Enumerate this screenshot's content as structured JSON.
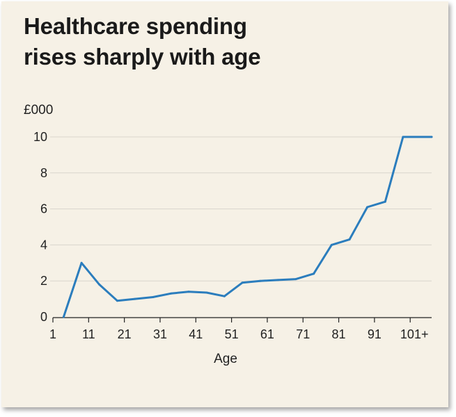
{
  "title_line1": "Healthcare spending",
  "title_line2": "rises sharply with age",
  "chart_data": {
    "type": "line",
    "title": "Healthcare spending rises sharply with age",
    "xlabel": "Age",
    "ylabel": "£000",
    "x_ticks": [
      "1",
      "11",
      "21",
      "31",
      "41",
      "51",
      "61",
      "71",
      "81",
      "91",
      "101+"
    ],
    "y_ticks": [
      "0",
      "2",
      "4",
      "6",
      "8",
      "10"
    ],
    "ylim": [
      0,
      10
    ],
    "xlim": [
      1,
      107
    ],
    "grid": "horizontal",
    "legend": "none",
    "colors": {
      "line": "#2b7dbd",
      "grid": "#d9d5cc",
      "background": "#f6f1e6"
    },
    "series": [
      {
        "x": [
          4,
          9,
          14,
          19,
          24,
          29,
          34,
          39,
          44,
          49,
          54,
          59,
          64,
          69,
          74,
          79,
          84,
          89,
          94,
          99,
          104,
          107
        ],
        "values": [
          0,
          3.0,
          1.8,
          0.9,
          1.0,
          1.1,
          1.3,
          1.4,
          1.35,
          1.15,
          1.9,
          2.0,
          2.05,
          2.1,
          2.4,
          4.0,
          4.3,
          6.1,
          6.4,
          10.0,
          10.0,
          10.0
        ]
      }
    ]
  }
}
